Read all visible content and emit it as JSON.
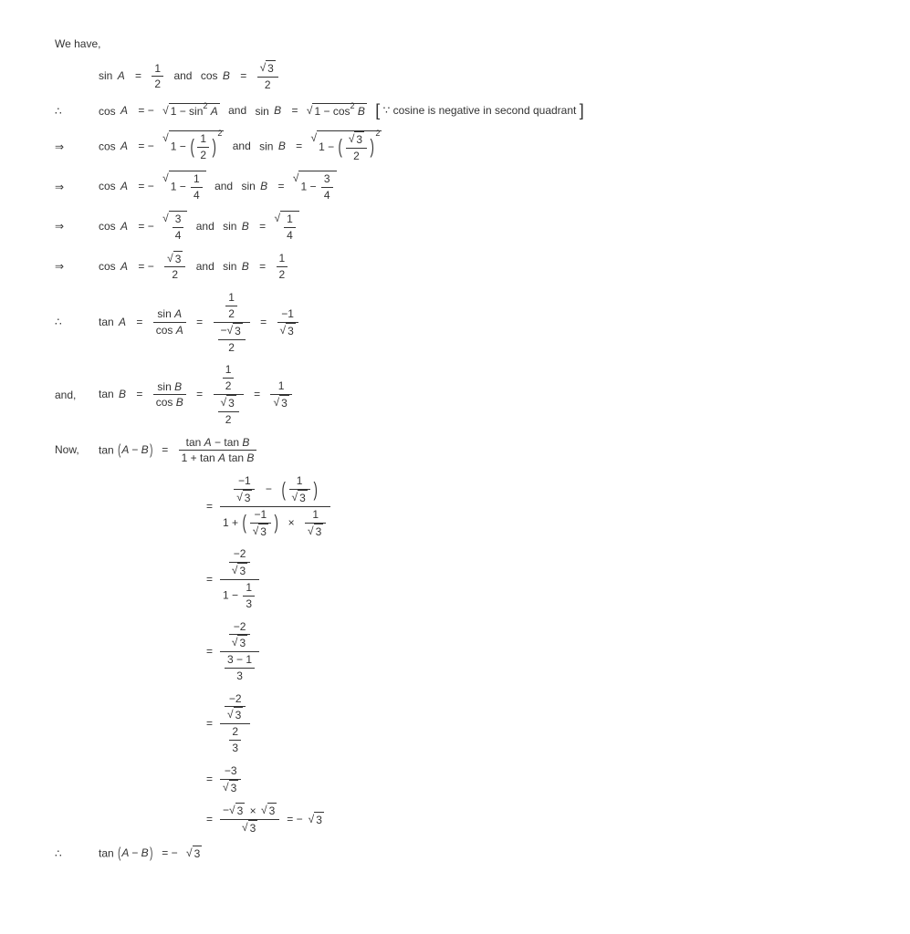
{
  "intro": "We have,",
  "lines": {
    "l1_sinA": "sin",
    "l1_A": "A",
    "l1_eq": "=",
    "l1_half_num": "1",
    "l1_half_den": "2",
    "l1_and": "and",
    "l1_cosB": "cos",
    "l1_B": "B",
    "l1_r3": "3",
    "l1_den2": "2",
    "l2_pre": "∴",
    "l2_cosA": "cos",
    "l2_A": "A",
    "l2_eq": "= −",
    "l2_rad": "1 − sin",
    "l2_radsup": "2",
    "l2_radA": "A",
    "l2_and": "and",
    "l2_sinB": "sin",
    "l2_B": "B",
    "l2_eq2": "=",
    "l2_rad2": "1 − cos",
    "l2_rad2sup": "2",
    "l2_rad2B": "B",
    "l2_note": "∵ cosine is negative in second quadrant",
    "imp": "⇒",
    "l3_cosA": "cos",
    "l3_A": "A",
    "l3_eq": "= −",
    "l3_one": "1 −",
    "l3_half_num": "1",
    "l3_half_den": "2",
    "l3_sup": "2",
    "l3_and": "and",
    "l3_sinB": "sin",
    "l3_B": "B",
    "l3_eq2": "=",
    "l3_one2": "1 −",
    "l3_r3": "3",
    "l3_den2": "2",
    "l3_sup2": "2",
    "l4_rad1": "1 −",
    "l4_q_num": "1",
    "l4_q_den": "4",
    "l4_rad2": "1 −",
    "l4_q2_num": "3",
    "l4_q2_den": "4",
    "l5_n1": "3",
    "l5_d1": "4",
    "l5_n2": "1",
    "l5_d2": "4",
    "l6_cosA": "cos",
    "l6_A": "A",
    "l6_eq": "= −",
    "l6_r3": "3",
    "l6_d2": "2",
    "l6_and": "and",
    "l6_sinB": "sin",
    "l6_B": "B",
    "l6_eq2": "=",
    "l6_n": "1",
    "l6_d": "2",
    "l7_pre": "∴",
    "l7_tanA": "tan",
    "l7_A": "A",
    "l7_eq": "=",
    "l7_sinA_n": "sin",
    "l7_sinA_n2": "A",
    "l7_cosA_d": "cos",
    "l7_cosA_d2": "A",
    "l7_h1": "1",
    "l7_h2": "2",
    "l7_mr3": "3",
    "l7_m2": "2",
    "l7_fin_n": "−1",
    "l7_fin_d": "3",
    "l8_pre": "and,",
    "l8_tanB": "tan",
    "l8_B": "B",
    "l8_sinB_n": "sin",
    "l8_cosB_d": "cos",
    "l9_pre": "Now,",
    "l9_tanAB": "tan",
    "l9_AB": "A − B",
    "l9_eq": "=",
    "l9_num1": "tan",
    "l9_num2": "A",
    "l9_num3": "− tan",
    "l9_num4": "B",
    "l9_den1": "1 + tan",
    "l9_den2": "A",
    "l9_den3": "tan",
    "l9_den4": "B",
    "step1_n_a_n": "−1",
    "step1_n_a_d": "3",
    "step1_minus": "−",
    "step1_n_b_n": "1",
    "step1_n_b_d": "3",
    "step1_d_1": "1 +",
    "step1_times": "×",
    "step2_nn": "−2",
    "step2_nd": "3",
    "step2_d1": "1 −",
    "step2_dfn": "1",
    "step2_dfd": "3",
    "step3_d_n": "3 − 1",
    "step3_d_d": "3",
    "step4_d_n": "2",
    "step4_d_d": "3",
    "step5_n": "−3",
    "step5_d": "3",
    "step6_n1": "−",
    "step6_n2": "3",
    "step6_times": "×",
    "step6_n3": "3",
    "step6_d": "3",
    "step6_eq": "= −",
    "step6_res": "3",
    "final_pre": "∴",
    "final_tan": "tan",
    "final_AB": "A − B",
    "final_eq": "= −",
    "final_r3": "3"
  }
}
